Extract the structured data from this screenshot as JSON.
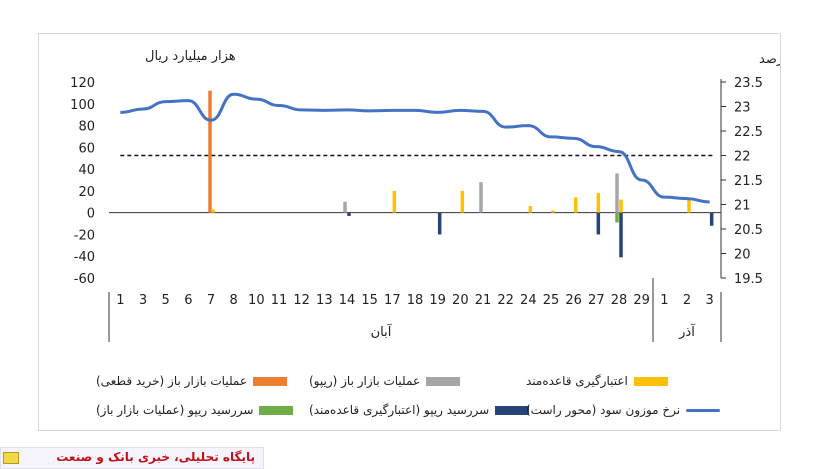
{
  "chart_data": {
    "type": "bar+line",
    "left_axis_title": "هزار میلیارد ریال",
    "right_axis_title": "درصد",
    "left_axis": {
      "min": -60,
      "max": 120,
      "ticks": [
        120,
        100,
        80,
        60,
        40,
        20,
        0,
        -20,
        -40,
        -60
      ]
    },
    "right_axis": {
      "min": 19.5,
      "max": 23.5,
      "ticks": [
        "23.5",
        "23",
        "22.5",
        "22",
        "21.5",
        "21",
        "20.5",
        "20",
        "19.5"
      ]
    },
    "categories": [
      "1",
      "3",
      "5",
      "6",
      "7",
      "8",
      "10",
      "11",
      "12",
      "13",
      "14",
      "15",
      "17",
      "18",
      "19",
      "20",
      "21",
      "22",
      "24",
      "25",
      "26",
      "27",
      "28",
      "29",
      "1",
      "2",
      "3"
    ],
    "months": [
      {
        "name": "آبان",
        "from": 0,
        "to": 23
      },
      {
        "name": "آذر",
        "from": 24,
        "to": 26
      }
    ],
    "series": [
      {
        "name": "عملیات بازار باز (خرید قطعی)",
        "type": "bar",
        "color": "#ed7d31",
        "values": [
          0,
          0,
          0,
          0,
          112,
          0,
          0,
          0,
          0,
          0,
          0,
          0,
          0,
          0,
          0,
          0,
          0,
          0,
          0,
          0,
          0,
          0,
          0,
          0,
          0,
          0,
          0
        ]
      },
      {
        "name": "عملیات بازار باز (ریپو)",
        "type": "bar",
        "color": "#a5a5a5",
        "values": [
          0,
          0,
          0,
          0,
          0,
          0,
          0,
          0,
          0,
          0,
          10,
          0,
          0,
          0,
          0,
          0,
          28,
          0,
          0,
          0,
          0,
          0,
          36,
          0,
          0,
          0,
          0
        ]
      },
      {
        "name": "اعتبارگیری قاعده‌مند",
        "type": "bar",
        "color": "#ffc000",
        "values": [
          0,
          0,
          0,
          0,
          3,
          0,
          0,
          0,
          0,
          0,
          0,
          0,
          20,
          0,
          0,
          20,
          0,
          0,
          6,
          2,
          14,
          18,
          12,
          0,
          0,
          12,
          0
        ]
      },
      {
        "name": "سررسید ریپو (عملیات بازار باز)",
        "type": "bar",
        "color": "#70ad47",
        "values": [
          0,
          0,
          0,
          0,
          0,
          0,
          0,
          0,
          0,
          0,
          0,
          0,
          0,
          0,
          0,
          0,
          0,
          0,
          0,
          0,
          0,
          0,
          -9,
          0,
          0,
          0,
          0
        ]
      },
      {
        "name": "سررسید ریپو (اعتبارگیری قاعده‌مند)",
        "type": "bar",
        "color": "#264478",
        "values": [
          0,
          0,
          0,
          0,
          0,
          0,
          0,
          0,
          0,
          0,
          -3,
          0,
          0,
          0,
          -20,
          0,
          0,
          0,
          0,
          0,
          0,
          -20,
          -41,
          0,
          0,
          0,
          -12
        ]
      },
      {
        "name": "نرخ موزون سود (محور راست)",
        "type": "line",
        "color": "#4472c4",
        "axis": "right",
        "values": [
          22.88,
          22.95,
          23.1,
          23.12,
          22.72,
          23.25,
          23.15,
          23.02,
          22.93,
          22.92,
          22.93,
          22.91,
          22.92,
          22.92,
          22.88,
          22.92,
          22.9,
          22.58,
          22.61,
          22.38,
          22.35,
          22.18,
          22.08,
          21.5,
          21.15,
          21.12,
          21.05
        ]
      }
    ],
    "reference_line": {
      "axis": "right",
      "value": 22.0,
      "style": "dashed"
    }
  },
  "footer": {
    "text": "پایگاه تحلیلی، خبری بانک و صنعت"
  }
}
